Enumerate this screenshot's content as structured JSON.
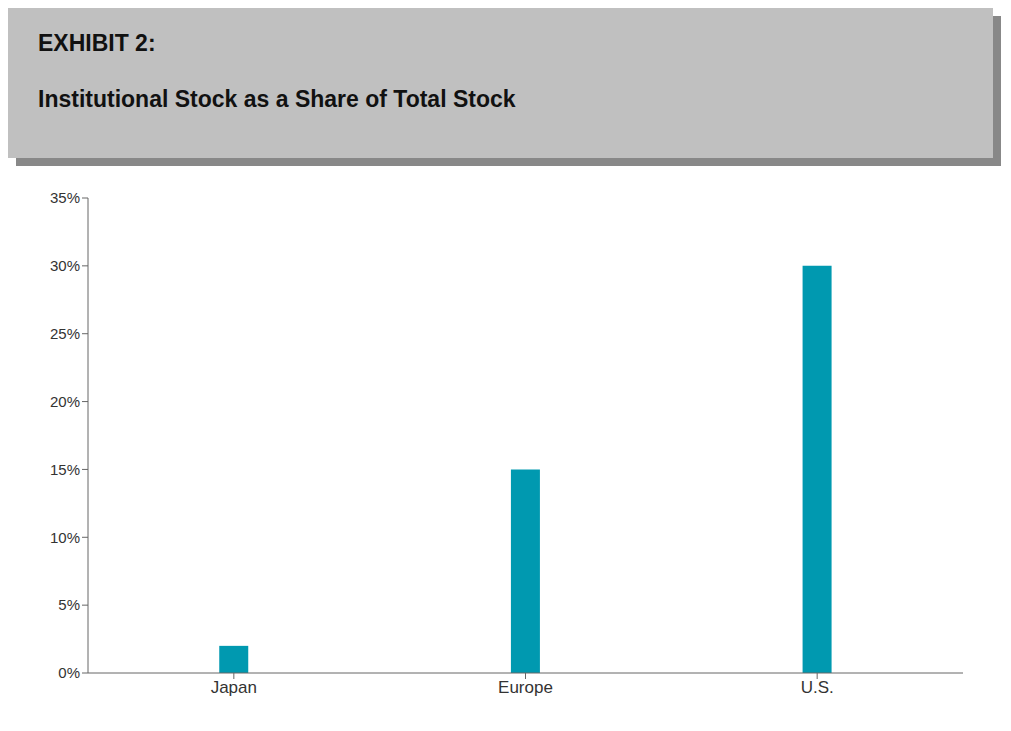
{
  "chart_data": {
    "type": "bar",
    "title": "EXHIBIT 2:",
    "subtitle": "Institutional Stock as a Share of Total Stock",
    "categories": [
      "Japan",
      "Europe",
      "U.S."
    ],
    "values": [
      2.0,
      15.0,
      30.0
    ],
    "color": "#0099B0",
    "ylim": [
      0,
      35
    ],
    "yticks": [
      {
        "value": 0,
        "label": "0%"
      },
      {
        "value": 5,
        "label": "5%"
      },
      {
        "value": 10,
        "label": "10%"
      },
      {
        "value": 15,
        "label": "15%"
      },
      {
        "value": 20,
        "label": "20%"
      },
      {
        "value": 25,
        "label": "25%"
      },
      {
        "value": 30,
        "label": "30%"
      },
      {
        "value": 35,
        "label": "35%"
      }
    ],
    "grid": false
  }
}
